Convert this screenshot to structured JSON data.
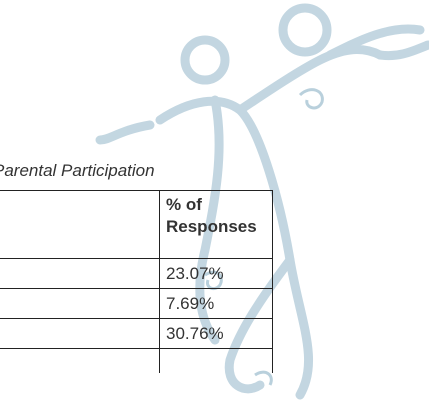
{
  "caption": "Parental Participation",
  "table": {
    "header": [
      "% of Responses"
    ],
    "rows": [
      [
        "23.07%"
      ],
      [
        "7.69%"
      ],
      [
        "30.76%"
      ]
    ]
  }
}
